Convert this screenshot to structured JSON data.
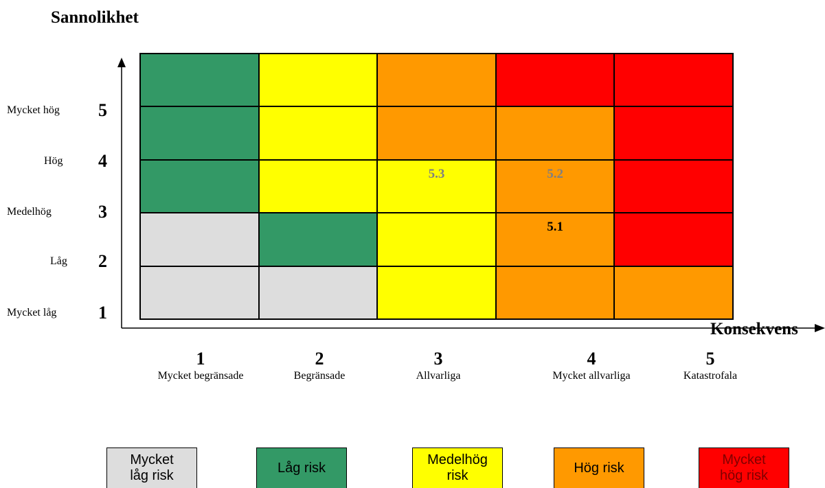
{
  "y_axis": {
    "title": "Sannolikhet",
    "levels": [
      {
        "number": "5",
        "name": "Mycket hög"
      },
      {
        "number": "4",
        "name": "Hög"
      },
      {
        "number": "3",
        "name": "Medelhög"
      },
      {
        "number": "2",
        "name": "Låg"
      },
      {
        "number": "1",
        "name": "Mycket låg"
      }
    ]
  },
  "x_axis": {
    "title": "Konsekvens",
    "levels": [
      {
        "number": "1",
        "name": "Mycket begränsade"
      },
      {
        "number": "2",
        "name": "Begränsade"
      },
      {
        "number": "3",
        "name": "Allvarliga"
      },
      {
        "number": "4",
        "name": "Mycket allvarliga"
      },
      {
        "number": "5",
        "name": "Katastrofala"
      }
    ]
  },
  "colors": {
    "very_low": "#dddddd",
    "low": "#339966",
    "medium": "#ffff00",
    "high": "#ff9900",
    "very_high": "#ff0000",
    "grey_label": "#808080",
    "black_label": "#000000"
  },
  "matrix": {
    "rows": [
      [
        "low",
        "medium",
        "high",
        "very_high",
        "very_high"
      ],
      [
        "low",
        "medium",
        "high",
        "high",
        "very_high"
      ],
      [
        "low",
        "medium",
        "medium",
        "high",
        "very_high"
      ],
      [
        "very_low",
        "low",
        "medium",
        "high",
        "very_high"
      ],
      [
        "very_low",
        "very_low",
        "medium",
        "high",
        "high"
      ]
    ],
    "labels": [
      {
        "row": 2,
        "col": 2,
        "text": "5.3",
        "color": "grey_label"
      },
      {
        "row": 2,
        "col": 3,
        "text": "5.2",
        "color": "grey_label"
      },
      {
        "row": 3,
        "col": 3,
        "text": "5.1",
        "color": "black_label"
      }
    ]
  },
  "legend": [
    {
      "key": "very_low",
      "text": "Mycket\nlåg risk"
    },
    {
      "key": "low",
      "text": "Låg risk"
    },
    {
      "key": "medium",
      "text": "Medelhög\nrisk"
    },
    {
      "key": "high",
      "text": "Hög risk"
    },
    {
      "key": "very_high",
      "text": "Mycket\nhög risk"
    }
  ]
}
